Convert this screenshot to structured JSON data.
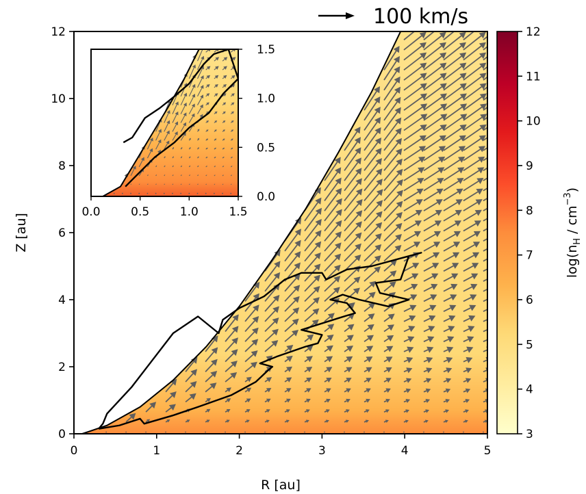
{
  "chart_data": {
    "type": "heatmap",
    "subtype": "density map with velocity vector field (quiver) and particle trajectory",
    "main_panel": {
      "xlabel": "R [au]",
      "ylabel": "Z [au]",
      "xlim": [
        0,
        5
      ],
      "ylim": [
        0,
        12
      ],
      "xticks": [
        0,
        1,
        2,
        3,
        4,
        5
      ],
      "yticks": [
        0,
        2,
        4,
        6,
        8,
        10,
        12
      ],
      "grid": false,
      "wind_boundary_Z_at_R": [
        [
          0.1,
          0.0
        ],
        [
          0.4,
          0.25
        ],
        [
          0.8,
          0.8
        ],
        [
          1.2,
          1.6
        ],
        [
          1.6,
          2.6
        ],
        [
          2.0,
          3.8
        ],
        [
          2.4,
          5.2
        ],
        [
          2.8,
          6.7
        ],
        [
          3.2,
          8.4
        ],
        [
          3.6,
          10.2
        ],
        [
          3.95,
          12.0
        ]
      ],
      "trajectory": [
        [
          0.3,
          0.15
        ],
        [
          0.55,
          0.25
        ],
        [
          0.8,
          0.45
        ],
        [
          0.85,
          0.3
        ],
        [
          1.2,
          0.55
        ],
        [
          1.5,
          0.8
        ],
        [
          1.9,
          1.15
        ],
        [
          2.2,
          1.55
        ],
        [
          2.35,
          1.9
        ],
        [
          2.4,
          2.0
        ],
        [
          2.25,
          2.1
        ],
        [
          2.45,
          2.3
        ],
        [
          2.8,
          2.6
        ],
        [
          2.95,
          2.7
        ],
        [
          3.0,
          2.95
        ],
        [
          2.75,
          3.1
        ],
        [
          3.2,
          3.45
        ],
        [
          3.4,
          3.6
        ],
        [
          3.3,
          3.9
        ],
        [
          3.1,
          4.0
        ],
        [
          3.25,
          4.15
        ],
        [
          3.45,
          4.0
        ],
        [
          3.8,
          3.8
        ],
        [
          4.05,
          4.0
        ],
        [
          3.7,
          4.2
        ],
        [
          3.65,
          4.5
        ],
        [
          3.95,
          4.6
        ],
        [
          4.05,
          5.3
        ],
        [
          4.2,
          5.4
        ],
        [
          3.9,
          5.2
        ],
        [
          3.6,
          5.0
        ],
        [
          3.3,
          4.9
        ],
        [
          3.05,
          4.6
        ],
        [
          3.0,
          4.8
        ],
        [
          2.75,
          4.8
        ],
        [
          2.55,
          4.6
        ],
        [
          2.3,
          4.1
        ],
        [
          2.0,
          3.75
        ],
        [
          1.8,
          3.4
        ],
        [
          1.75,
          3.0
        ],
        [
          1.5,
          3.5
        ],
        [
          1.2,
          3.0
        ],
        [
          0.95,
          2.2
        ],
        [
          0.7,
          1.4
        ],
        [
          0.4,
          0.6
        ],
        [
          0.35,
          0.3
        ],
        [
          0.3,
          0.15
        ]
      ]
    },
    "inset": {
      "xlim": [
        0,
        1.5
      ],
      "ylim": [
        0,
        1.5
      ],
      "xticks": [
        0.0,
        0.5,
        1.0,
        1.5
      ],
      "yticks": [
        0.0,
        0.5,
        1.0,
        1.5
      ],
      "tick_labels_x": [
        "0.0",
        "0.5",
        "1.0",
        "1.5"
      ],
      "tick_labels_y": [
        "0.0",
        "0.5",
        "1.0",
        "1.5"
      ],
      "wind_boundary_Z_at_R": [
        [
          0.12,
          0.0
        ],
        [
          0.3,
          0.1
        ],
        [
          0.45,
          0.35
        ],
        [
          0.6,
          0.6
        ],
        [
          0.78,
          0.9
        ],
        [
          0.95,
          1.2
        ],
        [
          1.1,
          1.5
        ]
      ],
      "trajectory": [
        [
          0.33,
          0.55
        ],
        [
          0.42,
          0.6
        ],
        [
          0.55,
          0.8
        ],
        [
          0.7,
          0.9
        ],
        [
          0.85,
          1.02
        ],
        [
          1.0,
          1.15
        ],
        [
          1.15,
          1.35
        ],
        [
          1.25,
          1.45
        ],
        [
          1.4,
          1.5
        ],
        [
          1.5,
          1.2
        ],
        [
          1.35,
          1.05
        ],
        [
          1.2,
          0.85
        ],
        [
          1.0,
          0.7
        ],
        [
          0.85,
          0.55
        ],
        [
          0.65,
          0.4
        ],
        [
          0.45,
          0.2
        ],
        [
          0.35,
          0.1
        ]
      ]
    },
    "colorbar": {
      "label": "log(n_H / cm^-3)",
      "label_text": "log(n",
      "label_sub": "H",
      "label_mid": " / cm",
      "label_sup": "−3",
      "label_end": ")",
      "range": [
        3,
        12
      ],
      "ticks": [
        3,
        4,
        5,
        6,
        7,
        8,
        9,
        10,
        11,
        12
      ],
      "colormap": "YlOrRd",
      "color_stops": [
        "#ffffcc",
        "#ffeda0",
        "#fed976",
        "#feb24c",
        "#fd8d3c",
        "#fc4e2a",
        "#e31a1c",
        "#bd0026",
        "#800026"
      ]
    },
    "reference_arrow": {
      "label": "100 km/s",
      "speed_kms": 100
    },
    "colors": {
      "arrow": "#5f5f5f",
      "trajectory": "#000000",
      "disk_base": "#fd8d3c",
      "wind_fill": "#fed976"
    }
  }
}
